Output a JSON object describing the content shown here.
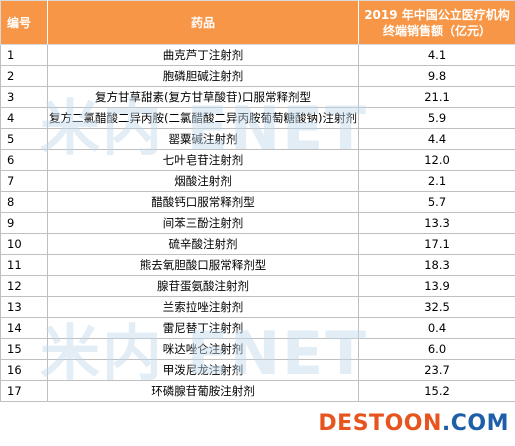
{
  "table": {
    "headers": {
      "index": "编号",
      "drug": "药品",
      "value_line1": "2019 年中国公立医疗机构",
      "value_line2": "终端销售额（亿元）"
    },
    "rows": [
      {
        "index": "1",
        "drug": "曲克芦丁注射剂",
        "value": "4.1"
      },
      {
        "index": "2",
        "drug": "胞磷胆碱注射剂",
        "value": "9.8"
      },
      {
        "index": "3",
        "drug": "复方甘草甜素(复方甘草酸苷)口服常释剂型",
        "value": "21.1"
      },
      {
        "index": "4",
        "drug": "复方二氯醋酸二异丙胺(二氯醋酸二异丙胺葡萄糖酸钠)注射剂",
        "value": "5.9"
      },
      {
        "index": "5",
        "drug": "罂粟碱注射剂",
        "value": "4.4"
      },
      {
        "index": "6",
        "drug": "七叶皂苷注射剂",
        "value": "12.0"
      },
      {
        "index": "7",
        "drug": "烟酸注射剂",
        "value": "2.1"
      },
      {
        "index": "8",
        "drug": "醋酸钙口服常释剂型",
        "value": "5.7"
      },
      {
        "index": "9",
        "drug": "间苯三酚注射剂",
        "value": "13.3"
      },
      {
        "index": "10",
        "drug": "硫辛酸注射剂",
        "value": "17.1"
      },
      {
        "index": "11",
        "drug": "熊去氧胆酸口服常释剂型",
        "value": "18.3"
      },
      {
        "index": "12",
        "drug": "腺苷蛋氨酸注射剂",
        "value": "13.9"
      },
      {
        "index": "13",
        "drug": "兰索拉唑注射剂",
        "value": "32.5"
      },
      {
        "index": "14",
        "drug": "雷尼替丁注射剂",
        "value": "0.4"
      },
      {
        "index": "15",
        "drug": "咪达唑仑注射剂",
        "value": "6.0"
      },
      {
        "index": "16",
        "drug": "甲泼尼龙注射剂",
        "value": "23.7"
      },
      {
        "index": "17",
        "drug": "环磷腺苷葡胺注射剂",
        "value": "15.2"
      }
    ]
  },
  "watermarks": {
    "text1": "米内 ENET",
    "text2": "米内 ENET"
  },
  "logo": {
    "part1": "DESTOON",
    "part2": ".COM"
  },
  "colors": {
    "header_bg": "#f79646",
    "header_text": "#ffffff",
    "logo_primary": "#e8541e",
    "logo_secondary": "#1f5fa8"
  }
}
